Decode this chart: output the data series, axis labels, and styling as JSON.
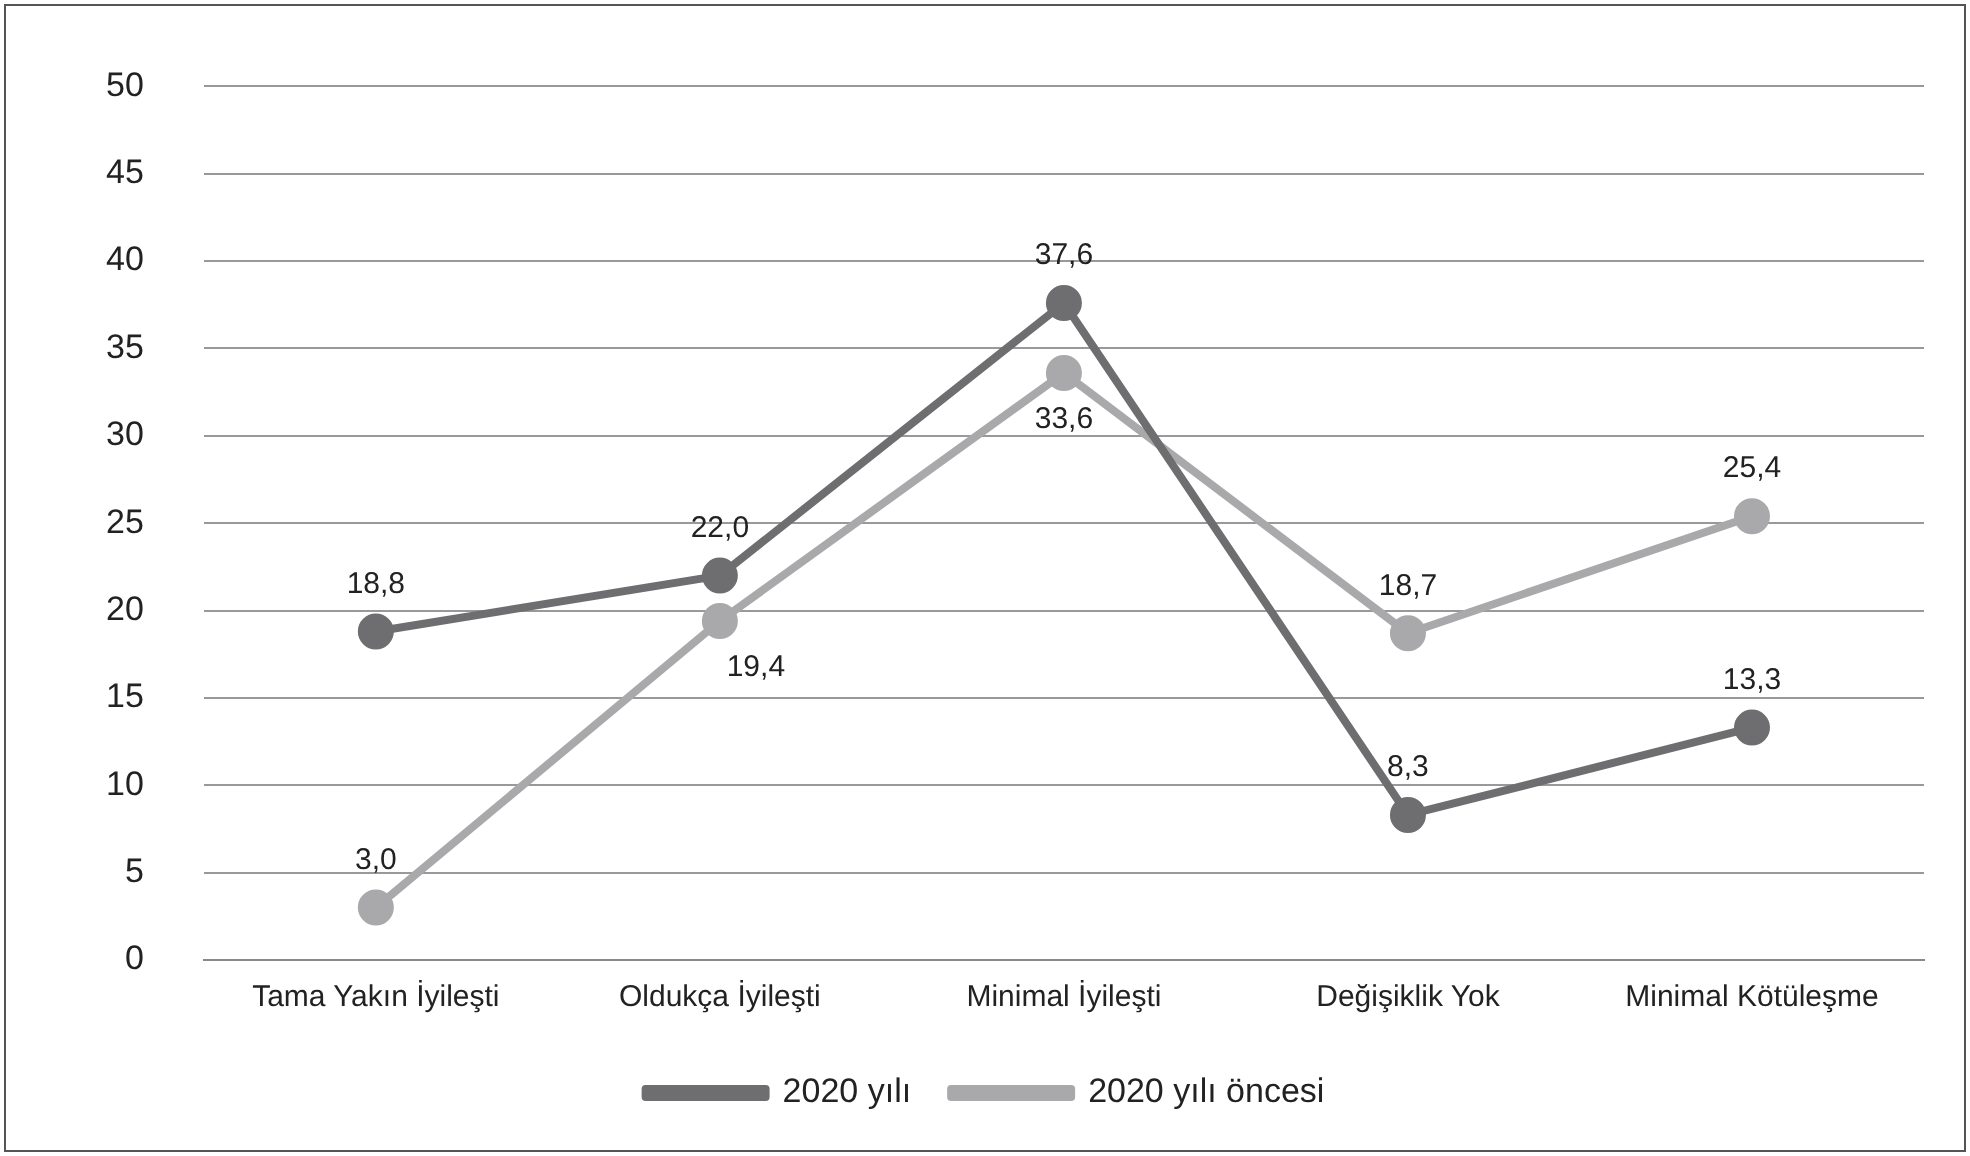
{
  "chart_data": {
    "type": "line",
    "categories": [
      "Tama Yakın İyileşti",
      "Oldukça İyileşti",
      "Minimal İyileşti",
      "Değişiklik Yok",
      "Minimal Kötüleşme"
    ],
    "series": [
      {
        "name": "2020 yılı",
        "color": "#6e6e70",
        "values": [
          18.8,
          22.0,
          37.6,
          8.3,
          13.3
        ],
        "value_labels": [
          "18,8",
          "22,0",
          "37,6",
          "8,3",
          "13,3"
        ]
      },
      {
        "name": "2020 yılı öncesi",
        "color": "#a9a9ab",
        "values": [
          3.0,
          19.4,
          33.6,
          18.7,
          25.4
        ],
        "value_labels": [
          "3,0",
          "19,4",
          "33,6",
          "18,7",
          "25,4"
        ]
      }
    ],
    "ylim": [
      0,
      50
    ],
    "yticks": [
      0,
      5,
      10,
      15,
      20,
      25,
      30,
      35,
      40,
      45,
      50
    ],
    "grid": "y",
    "legend": "bottom",
    "marker": "circle",
    "line_style": "solid"
  }
}
